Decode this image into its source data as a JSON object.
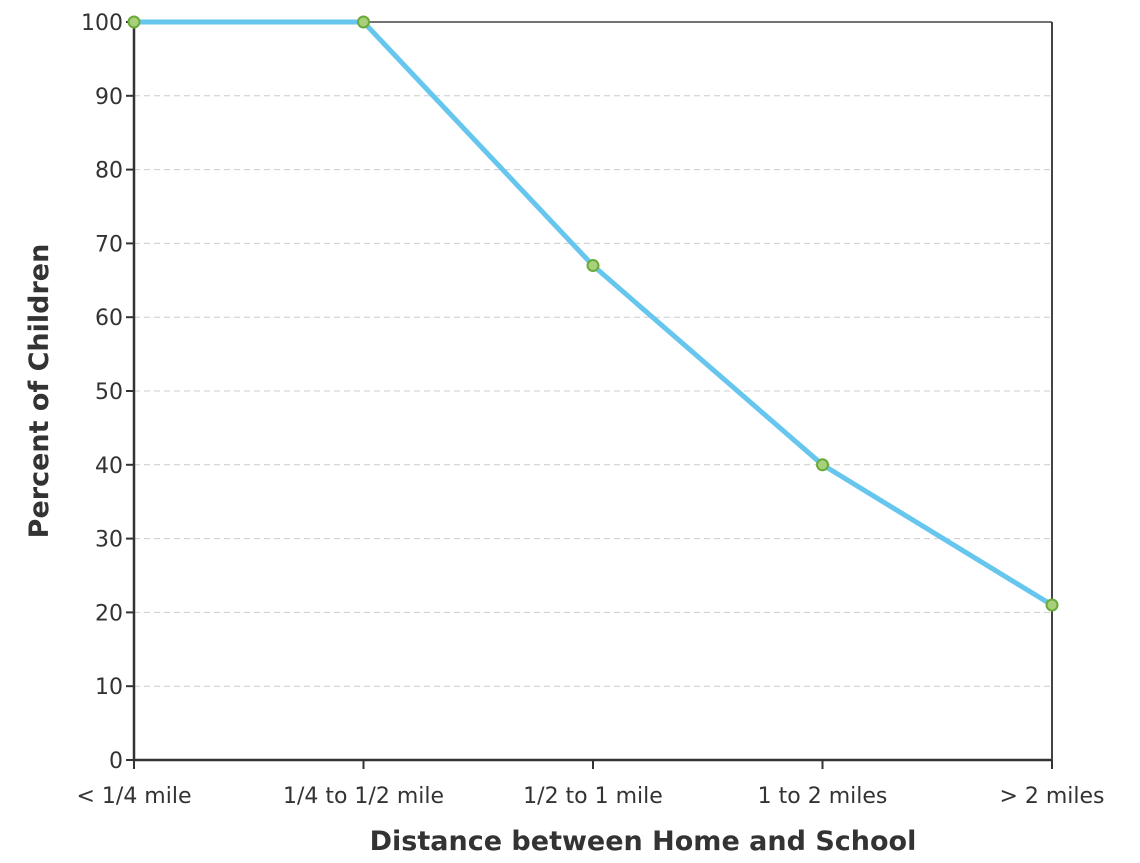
{
  "chart_data": {
    "type": "line",
    "title": "",
    "xlabel": "Distance between Home and School",
    "ylabel": "Percent of Children",
    "categories": [
      "< 1/4 mile",
      "1/4 to 1/2 mile",
      "1/2 to 1 mile",
      "1 to 2 miles",
      "> 2 miles"
    ],
    "series": [
      {
        "values": [
          100,
          100,
          67,
          40,
          21
        ]
      }
    ],
    "ylim": [
      0,
      100
    ],
    "yticks": [
      0,
      10,
      20,
      30,
      40,
      50,
      60,
      70,
      80,
      90,
      100
    ],
    "grid": "horizontal dashed",
    "legend": "none",
    "colors": {
      "line": "#66c6ee",
      "marker_fill": "#a8d07a",
      "marker_stroke": "#6aaa3a",
      "axis": "#333333",
      "grid": "#cccccc"
    }
  }
}
